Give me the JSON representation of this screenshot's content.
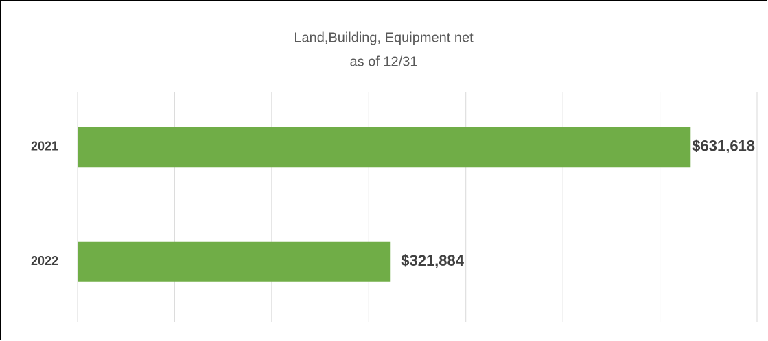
{
  "chart_data": {
    "type": "bar",
    "orientation": "horizontal",
    "title": "Land,Building, Equipment net",
    "subtitle": "as of 12/31",
    "categories": [
      "2021",
      "2022"
    ],
    "values": [
      631618,
      321884
    ],
    "value_labels": [
      "$631,618",
      "$321,884"
    ],
    "color": "#70ad47",
    "xlim": [
      0,
      700000
    ],
    "xticks": [
      0,
      100000,
      200000,
      300000,
      400000,
      500000,
      600000,
      700000
    ],
    "grid": true
  }
}
